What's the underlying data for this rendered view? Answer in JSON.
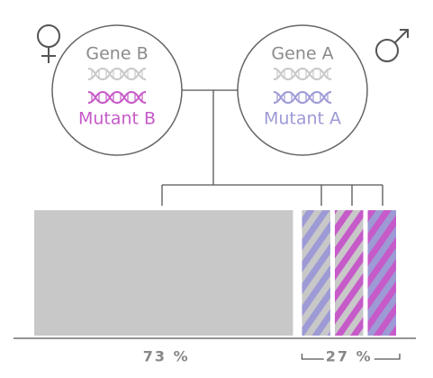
{
  "parents": [
    {
      "gene": "Gene B",
      "mutant": "Mutant B"
    },
    {
      "gene": "Gene A",
      "mutant": "Mutant A"
    }
  ],
  "segments": [
    {
      "value": 73,
      "label": "73 %"
    },
    {
      "value": 27,
      "label": "27 %"
    }
  ]
}
